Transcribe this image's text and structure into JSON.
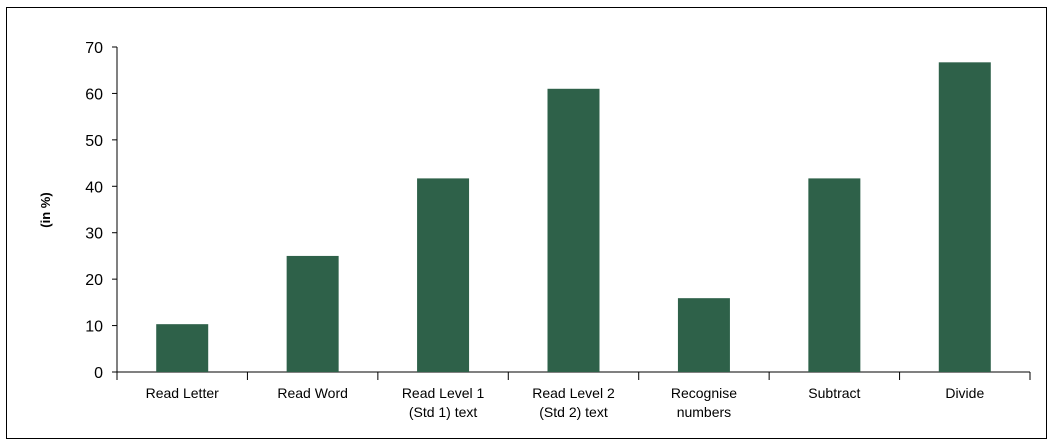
{
  "chart_data": {
    "type": "bar",
    "title": "",
    "xlabel": "",
    "ylabel": "(in %)",
    "ylim": [
      0,
      70
    ],
    "yticks": [
      0,
      10,
      20,
      30,
      40,
      50,
      60,
      70
    ],
    "grid": false,
    "legend": "none",
    "bar_color": "#2e6149",
    "categories": [
      [
        "Read Letter"
      ],
      [
        "Read Word"
      ],
      [
        "Read Level 1",
        "(Std 1) text"
      ],
      [
        "Read Level 2",
        "(Std 2) text"
      ],
      [
        "Recognise",
        "numbers"
      ],
      [
        "Subtract"
      ],
      [
        "Divide"
      ]
    ],
    "values": [
      10.3,
      25,
      41.7,
      61,
      15.9,
      41.7,
      66.7
    ]
  }
}
